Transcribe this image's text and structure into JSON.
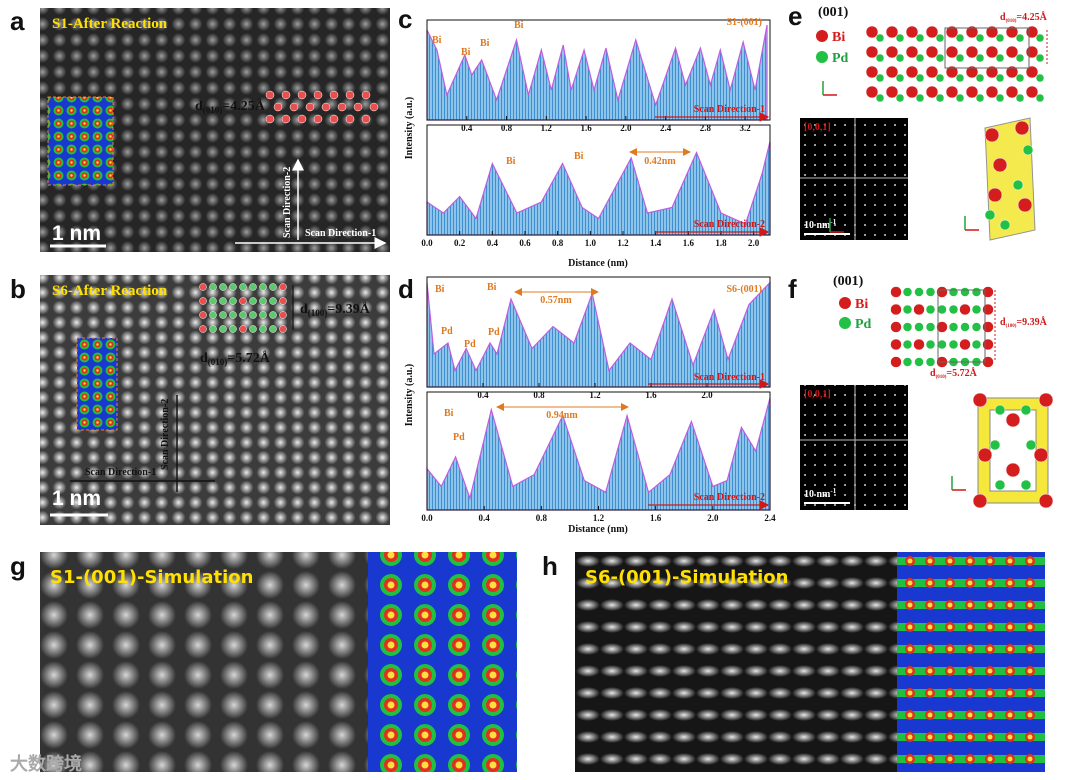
{
  "watermark": "大数跨境",
  "panels": {
    "a": {
      "letter": "a",
      "title": "S1-After Reaction",
      "spacing": {
        "d": "d",
        "sub": "(010)",
        "rest": "=4.25Å"
      },
      "scale_bar": "1 nm",
      "scan1": "Scan Direction-1",
      "scan2": "Scan Direction-2"
    },
    "b": {
      "letter": "b",
      "title": "S6-After Reaction",
      "spacing_1": {
        "d": "d",
        "sub": "(100)",
        "rest": "=9.39Å"
      },
      "spacing_2": {
        "d": "d",
        "sub": "(010)",
        "rest": "=5.72Å"
      },
      "scale_bar": "1 nm",
      "scan1": "Scan Direction-1",
      "scan2": "Scan Direction-2"
    },
    "c": {
      "letter": "c",
      "y_label": "Intensity (a.u.)",
      "x_label": "Distance (nm)",
      "plots": [
        {
          "title": "S1-(001)",
          "scan": "Scan Direction-1",
          "labels": [
            "Bi",
            "Bi",
            "Bi",
            "Bi"
          ],
          "xlim": [
            0,
            3.45
          ],
          "ylim": [
            0,
            1
          ],
          "xticks": [
            0.4,
            0.8,
            1.2,
            1.6,
            {
              "value": 2,
              "label": "2.0"
            },
            2.4,
            2.8,
            3.2
          ],
          "x": [
            0,
            0.1,
            0.2,
            0.38,
            0.45,
            0.55,
            0.7,
            0.9,
            1.02,
            1.15,
            1.25,
            1.37,
            1.45,
            1.58,
            1.68,
            1.8,
            1.92,
            2.1,
            2.3,
            2.5,
            2.6,
            2.75,
            2.85,
            2.95,
            3.05,
            3.18,
            3.3,
            3.42
          ],
          "y": [
            0.9,
            0.7,
            0.25,
            0.65,
            0.45,
            0.6,
            0.2,
            0.8,
            0.25,
            0.7,
            0.3,
            0.75,
            0.3,
            0.7,
            0.3,
            0.72,
            0.2,
            0.8,
            0.15,
            0.72,
            0.35,
            0.72,
            0.35,
            0.7,
            0.3,
            0.78,
            0.3,
            0.95
          ]
        },
        {
          "scan": "Scan Direction-2",
          "labels": [
            "Bi",
            "Bi"
          ],
          "distance": "0.42nm",
          "xlim": [
            0,
            2.1
          ],
          "ylim": [
            0,
            1
          ],
          "xticks": [
            {
              "value": 0,
              "label": "0.0"
            },
            0.2,
            0.4,
            0.6,
            0.8,
            {
              "value": 1,
              "label": "1.0"
            },
            1.2,
            1.4,
            1.6,
            1.8,
            {
              "value": 2,
              "label": "2.0"
            }
          ],
          "x": [
            0,
            0.1,
            0.2,
            0.3,
            0.4,
            0.55,
            0.7,
            0.83,
            0.95,
            1.05,
            1.25,
            1.35,
            1.5,
            1.65,
            1.8,
            1.95,
            2.05,
            2.1
          ],
          "y": [
            0.3,
            0.2,
            0.35,
            0.15,
            0.65,
            0.2,
            0.3,
            0.65,
            0.25,
            0.15,
            0.7,
            0.2,
            0.25,
            0.75,
            0.2,
            0.1,
            0.55,
            0.85
          ]
        }
      ]
    },
    "d": {
      "letter": "d",
      "y_label": "Intensity (a.u.)",
      "x_label": "Distance (nm)",
      "plots": [
        {
          "title": "S6-(001)",
          "scan": "Scan Direction-1",
          "labels": [
            "Bi",
            "Bi",
            "Pd",
            "Pd",
            "Pd"
          ],
          "distance": "0.57nm",
          "xlim": [
            0,
            2.45
          ],
          "ylim": [
            0,
            1
          ],
          "xticks": [
            0.4,
            0.8,
            1.2,
            1.6,
            {
              "value": 2,
              "label": "2.0"
            }
          ],
          "x": [
            0,
            0.05,
            0.15,
            0.2,
            0.28,
            0.35,
            0.45,
            0.5,
            0.6,
            0.75,
            0.9,
            1.05,
            1.18,
            1.3,
            1.45,
            1.6,
            1.75,
            1.9,
            2.05,
            2.15,
            2.3,
            2.45
          ],
          "y": [
            0.95,
            0.3,
            0.4,
            0.15,
            0.35,
            0.15,
            0.4,
            0.3,
            0.8,
            0.35,
            0.55,
            0.4,
            0.85,
            0.15,
            0.4,
            0.25,
            0.8,
            0.2,
            0.7,
            0.25,
            0.75,
            0.95
          ]
        },
        {
          "scan": "Scan Direction-2",
          "labels": [
            "Bi",
            "Pd"
          ],
          "distance": "0.94nm",
          "xlim": [
            0,
            2.4
          ],
          "ylim": [
            0,
            1
          ],
          "xticks": [
            {
              "value": 0,
              "label": "0.0"
            },
            0.4,
            0.8,
            1.2,
            1.6,
            {
              "value": 2,
              "label": "2.0"
            },
            2.4
          ],
          "x": [
            0,
            0.1,
            0.2,
            0.3,
            0.45,
            0.6,
            0.75,
            0.95,
            1.1,
            1.25,
            1.4,
            1.55,
            1.7,
            1.85,
            2.0,
            2.1,
            2.2,
            2.3,
            2.4
          ],
          "y": [
            0.35,
            0.2,
            0.45,
            0.1,
            0.85,
            0.2,
            0.3,
            0.8,
            0.25,
            0.15,
            0.8,
            0.15,
            0.3,
            0.75,
            0.2,
            0.25,
            0.7,
            0.5,
            0.95
          ]
        }
      ]
    },
    "e": {
      "letter": "e",
      "zone": "(001)",
      "legend": [
        "Bi",
        "Pd"
      ],
      "spacing": {
        "d": "d",
        "sub": "(010)",
        "rest": "=4.25Å"
      },
      "fft_index": "[0,0,1]",
      "fft_scale": {
        "main": "10 nm",
        "sup": "-1"
      }
    },
    "f": {
      "letter": "f",
      "zone": "(001)",
      "legend": [
        "Bi",
        "Pd"
      ],
      "spacing_1": {
        "d": "d",
        "sub": "(100)",
        "rest": "=9.39Å"
      },
      "spacing_2": {
        "d": "d",
        "sub": "(010)",
        "rest": "=5.72Å"
      },
      "fft_index": "[0,0,1]",
      "fft_scale": {
        "main": "10 nm",
        "sup": "-1"
      }
    },
    "g": {
      "letter": "g",
      "title": "S1-(001)-Simulation"
    },
    "h": {
      "letter": "h",
      "title": "S6-(001)-Simulation"
    }
  }
}
